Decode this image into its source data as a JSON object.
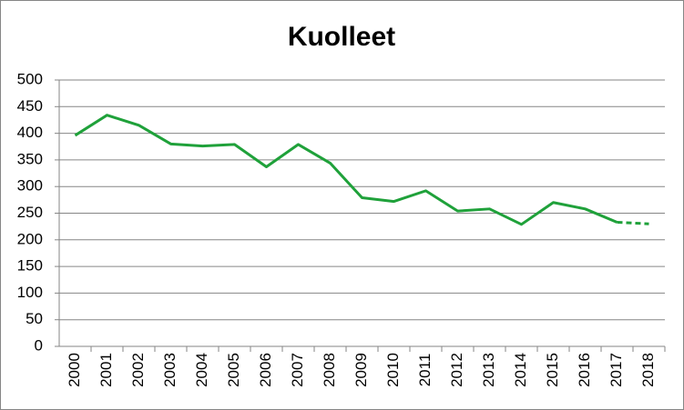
{
  "chart_data": {
    "type": "line",
    "title": "Kuolleet",
    "categories": [
      "2000",
      "2001",
      "2002",
      "2003",
      "2004",
      "2005",
      "2006",
      "2007",
      "2008",
      "2009",
      "2010",
      "2011",
      "2012",
      "2013",
      "2014",
      "2015",
      "2016",
      "2017",
      "2018"
    ],
    "values": [
      396,
      434,
      415,
      380,
      376,
      379,
      337,
      379,
      344,
      279,
      272,
      292,
      254,
      258,
      229,
      270,
      258,
      233,
      230
    ],
    "color": "#1fa13a",
    "dashed_last_segment": true,
    "ylim": [
      0,
      500
    ],
    "yticks": [
      0,
      50,
      100,
      150,
      200,
      250,
      300,
      350,
      400,
      450,
      500
    ],
    "grid": true
  }
}
